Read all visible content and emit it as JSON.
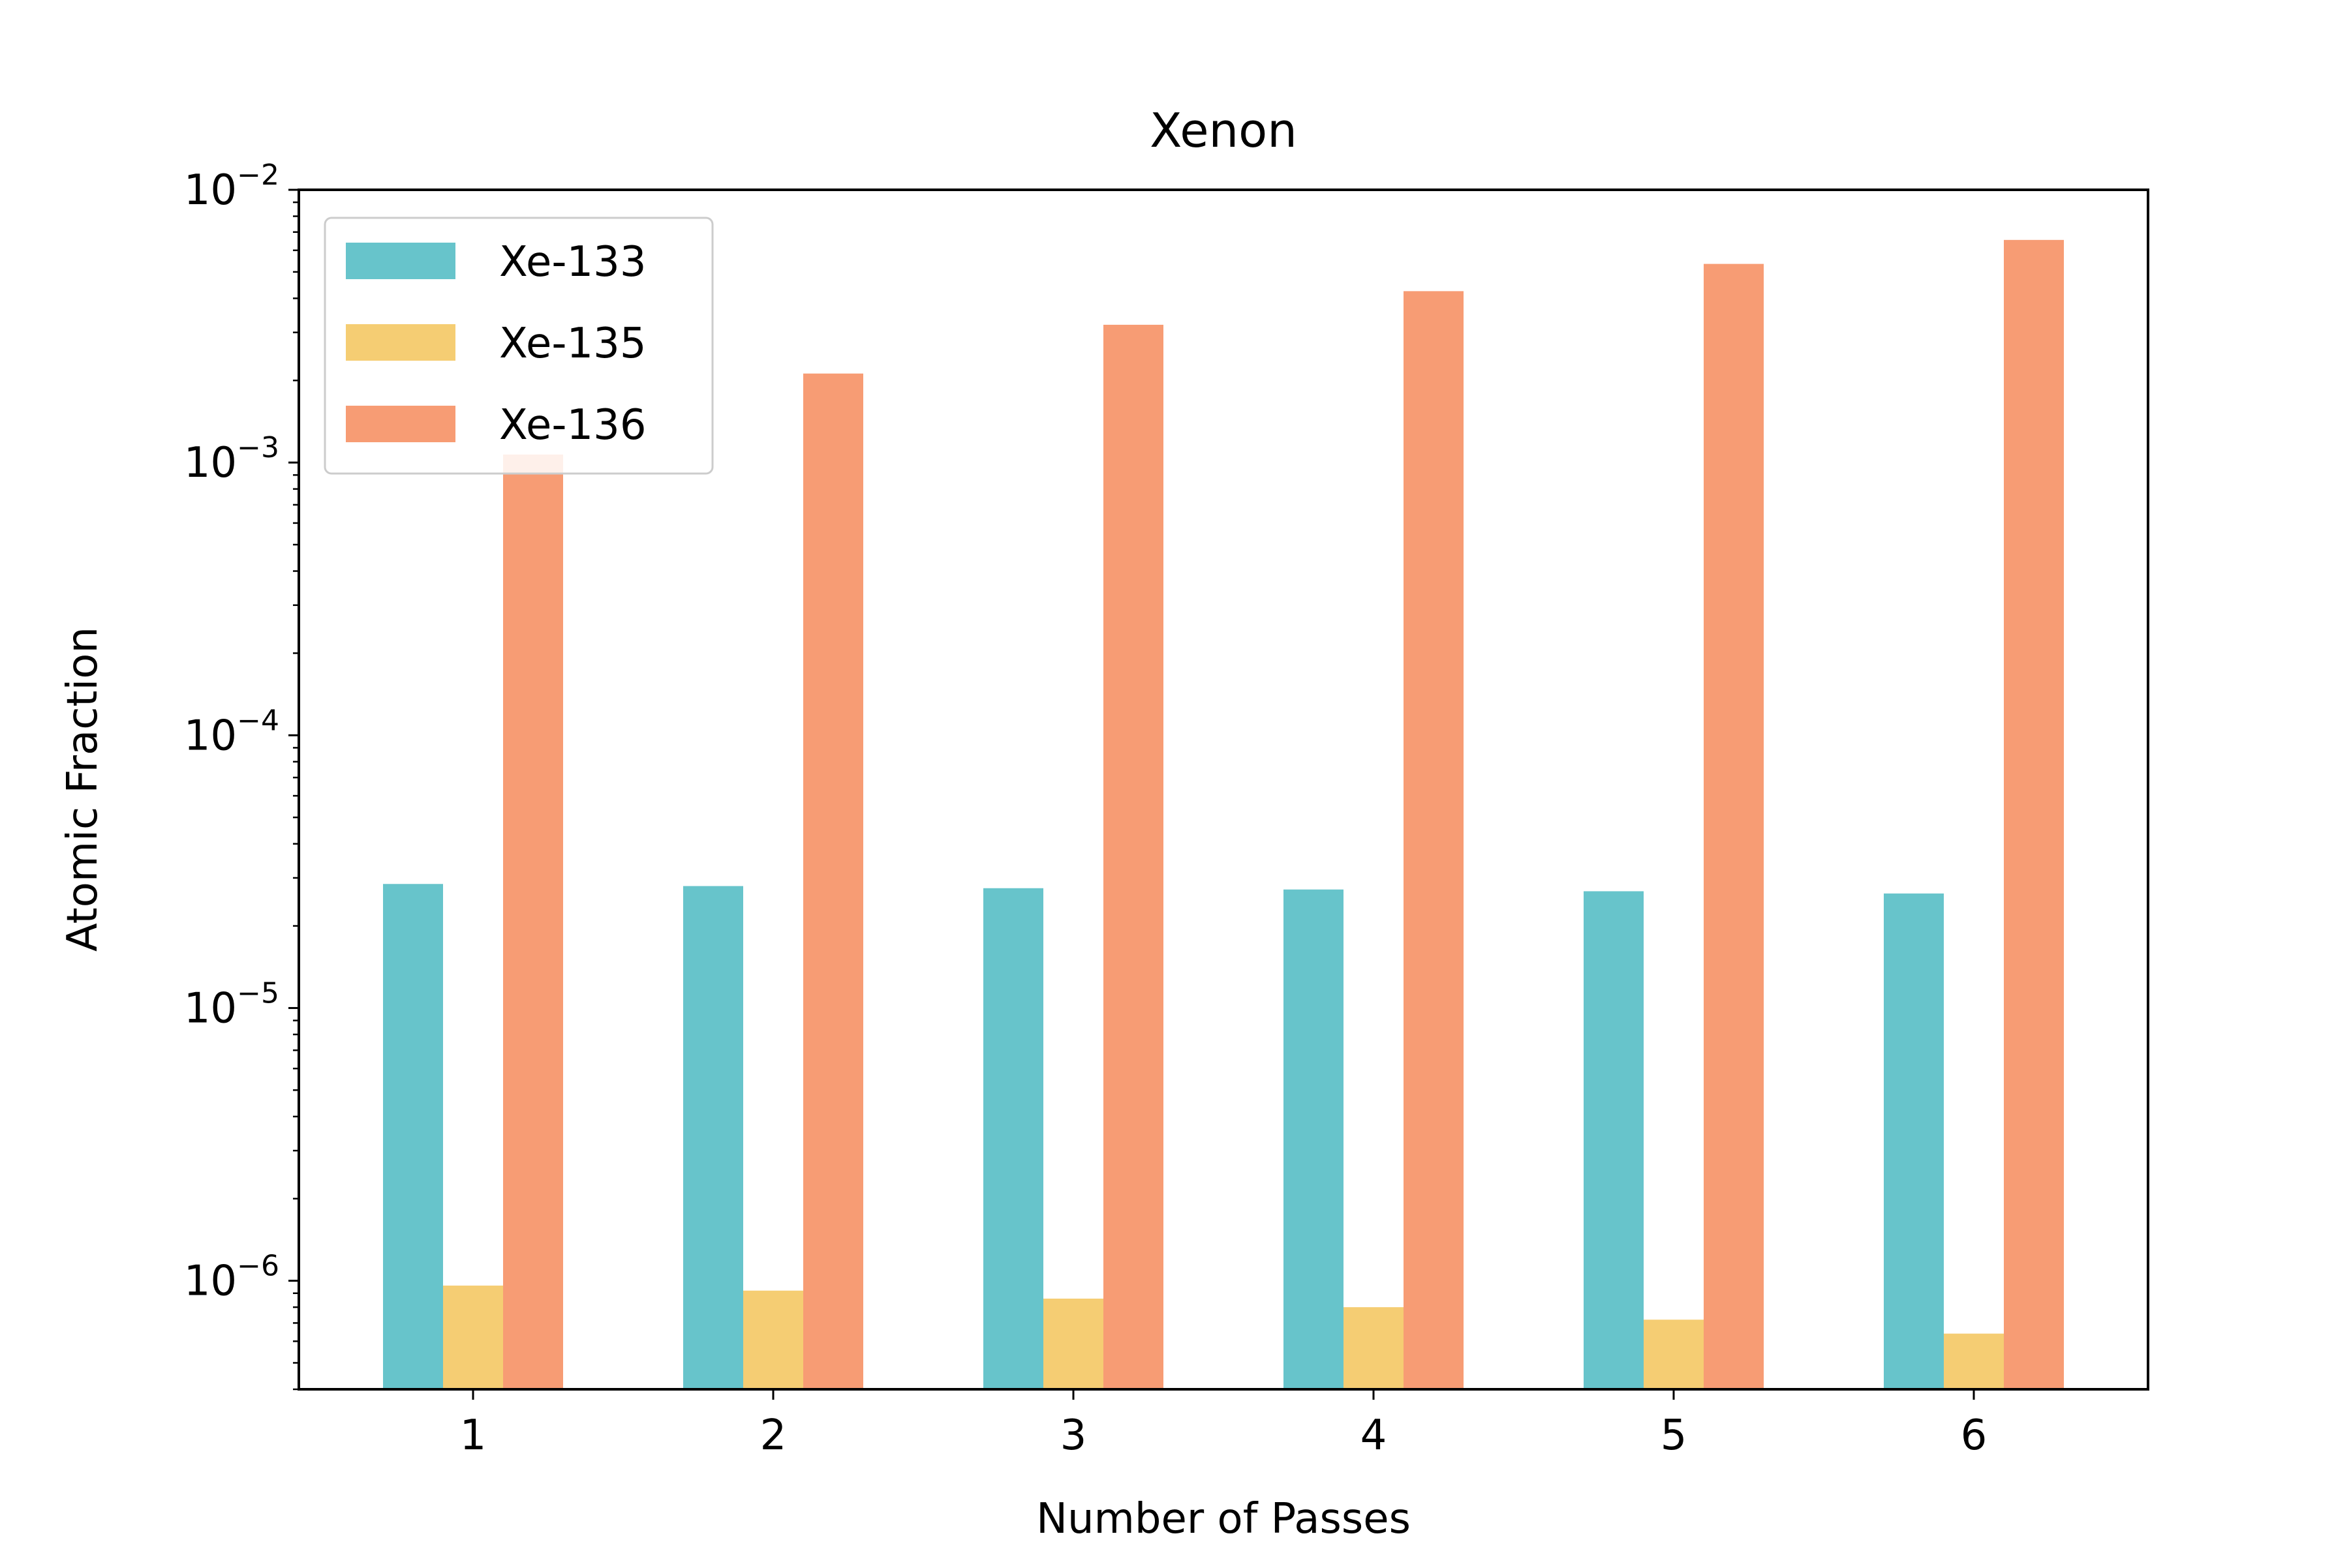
{
  "chart_data": {
    "type": "bar",
    "title": "Xenon",
    "xlabel": "Number of Passes",
    "ylabel": "Atomic Fraction",
    "yscale": "log",
    "ylim": [
      4e-07,
      0.01
    ],
    "grid": false,
    "legend_position": "top-left",
    "categories": [
      "1",
      "2",
      "3",
      "4",
      "5",
      "6"
    ],
    "y_ticks": [
      {
        "value": 1e-06,
        "base": "10",
        "exp": "−6"
      },
      {
        "value": 1e-05,
        "base": "10",
        "exp": "−5"
      },
      {
        "value": 0.0001,
        "base": "10",
        "exp": "−4"
      },
      {
        "value": 0.001,
        "base": "10",
        "exp": "−3"
      },
      {
        "value": 0.01,
        "base": "10",
        "exp": "−2"
      }
    ],
    "series": [
      {
        "name": "Xe-133",
        "color": "#67c4cb",
        "values": [
          2.85e-05,
          2.8e-05,
          2.75e-05,
          2.72e-05,
          2.68e-05,
          2.63e-05
        ]
      },
      {
        "name": "Xe-135",
        "color": "#f5cd73",
        "values": [
          9.6e-07,
          9.2e-07,
          8.6e-07,
          8e-07,
          7.2e-07,
          6.4e-07
        ]
      },
      {
        "name": "Xe-136",
        "color": "#f79c74",
        "values": [
          0.00107,
          0.00212,
          0.0032,
          0.00425,
          0.00535,
          0.00655
        ]
      }
    ]
  }
}
